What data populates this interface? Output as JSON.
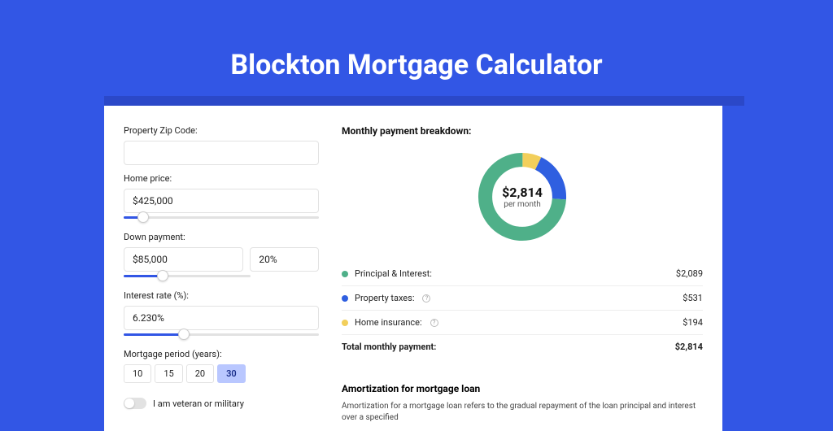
{
  "page": {
    "title": "Blockton Mortgage Calculator",
    "background_color": "#3256e5",
    "accent_bar_color": "#2b48c8",
    "card_bg": "#ffffff"
  },
  "form": {
    "zip_label": "Property Zip Code:",
    "zip_value": "",
    "home_price_label": "Home price:",
    "home_price_value": "$425,000",
    "home_price_slider_pct": 10,
    "down_payment_label": "Down payment:",
    "down_payment_value": "$85,000",
    "down_payment_pct": "20%",
    "down_payment_slider_pct": 20,
    "interest_label": "Interest rate (%):",
    "interest_value": "6.230%",
    "interest_slider_pct": 31,
    "period_label": "Mortgage period (years):",
    "period_options": [
      "10",
      "15",
      "20",
      "30"
    ],
    "period_selected": "30",
    "veteran_label": "I am veteran or military",
    "veteran_on": false
  },
  "breakdown": {
    "title": "Monthly payment breakdown:",
    "donut": {
      "center_amount": "$2,814",
      "center_sub": "per month",
      "slices": [
        {
          "label": "Principal & Interest:",
          "value": "$2,089",
          "color": "#4fb089",
          "pct": 74
        },
        {
          "label": "Property taxes:",
          "value": "$531",
          "color": "#2f5fe0",
          "pct": 19,
          "info": true
        },
        {
          "label": "Home insurance:",
          "value": "$194",
          "color": "#f2cf5b",
          "pct": 7,
          "info": true
        }
      ]
    },
    "total_label": "Total monthly payment:",
    "total_value": "$2,814"
  },
  "amortization": {
    "title": "Amortization for mortgage loan",
    "text": "Amortization for a mortgage loan refers to the gradual repayment of the loan principal and interest over a specified"
  }
}
